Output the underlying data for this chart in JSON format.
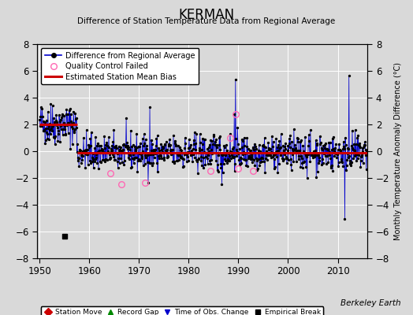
{
  "title": "KERMAN",
  "subtitle": "Difference of Station Temperature Data from Regional Average",
  "ylabel_right": "Monthly Temperature Anomaly Difference (°C)",
  "credit": "Berkeley Earth",
  "ylim": [
    -8,
    8
  ],
  "xlim": [
    1949.5,
    2016
  ],
  "xticks": [
    1950,
    1960,
    1970,
    1980,
    1990,
    2000,
    2010
  ],
  "yticks": [
    -8,
    -6,
    -4,
    -2,
    0,
    2,
    4,
    6,
    8
  ],
  "early_bias_level": 2.0,
  "late_bias_level": -0.1,
  "bias_break_year": 1957.5,
  "line_color": "#0000cc",
  "dot_color": "#000000",
  "bias_color": "#cc0000",
  "qc_color": "#ff69b4",
  "background_color": "#d9d9d9",
  "grid_color": "#ffffff",
  "station_move_color": "#cc0000",
  "record_gap_color": "#008800",
  "obs_change_color": "#0000cc",
  "empirical_break_color": "#000000",
  "empirical_break_year": 1955.0,
  "empirical_break_y": -6.35,
  "qc_years": [
    1964.3,
    1966.4,
    1971.2,
    1984.3,
    1988.3,
    1989.5,
    1989.9,
    1993.0
  ],
  "qc_vals": [
    -1.65,
    -2.45,
    -2.35,
    -1.5,
    1.0,
    2.75,
    -1.3,
    -1.5
  ],
  "years_start": 1950,
  "years_end": 2015,
  "seed": 42
}
